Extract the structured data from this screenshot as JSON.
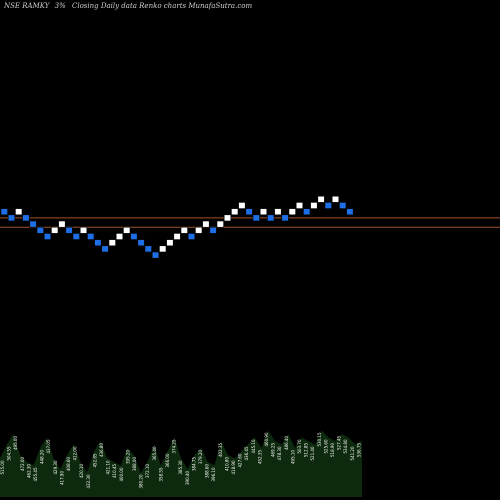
{
  "header": {
    "symbol": "NSE RAMKY",
    "suffix": "3%",
    "caption": "Closing Daily data  Renko  charts MunafaSutra.com"
  },
  "colors": {
    "background": "#000000",
    "up_brick": "#ffffff",
    "down_brick": "#1e6fe6",
    "level_line": "#a0522d",
    "volume_fill": "#0e2a0e"
  },
  "chart_data": {
    "type": "renko",
    "title": "NSE RAMKY 3% Closing Daily data Renko charts",
    "brick_size_pct": 3,
    "bricks": [
      {
        "d": "down",
        "lvl": 14
      },
      {
        "d": "down",
        "lvl": 13
      },
      {
        "d": "up",
        "lvl": 14
      },
      {
        "d": "down",
        "lvl": 13
      },
      {
        "d": "down",
        "lvl": 12
      },
      {
        "d": "down",
        "lvl": 11
      },
      {
        "d": "down",
        "lvl": 10
      },
      {
        "d": "up",
        "lvl": 11
      },
      {
        "d": "up",
        "lvl": 12
      },
      {
        "d": "down",
        "lvl": 11
      },
      {
        "d": "down",
        "lvl": 10
      },
      {
        "d": "up",
        "lvl": 11
      },
      {
        "d": "down",
        "lvl": 10
      },
      {
        "d": "down",
        "lvl": 9
      },
      {
        "d": "down",
        "lvl": 8
      },
      {
        "d": "up",
        "lvl": 9
      },
      {
        "d": "up",
        "lvl": 10
      },
      {
        "d": "up",
        "lvl": 11
      },
      {
        "d": "down",
        "lvl": 10
      },
      {
        "d": "down",
        "lvl": 9
      },
      {
        "d": "down",
        "lvl": 8
      },
      {
        "d": "down",
        "lvl": 7
      },
      {
        "d": "up",
        "lvl": 8
      },
      {
        "d": "up",
        "lvl": 9
      },
      {
        "d": "up",
        "lvl": 10
      },
      {
        "d": "up",
        "lvl": 11
      },
      {
        "d": "down",
        "lvl": 10
      },
      {
        "d": "up",
        "lvl": 11
      },
      {
        "d": "up",
        "lvl": 12
      },
      {
        "d": "down",
        "lvl": 11
      },
      {
        "d": "up",
        "lvl": 12
      },
      {
        "d": "up",
        "lvl": 13
      },
      {
        "d": "up",
        "lvl": 14
      },
      {
        "d": "up",
        "lvl": 15
      },
      {
        "d": "down",
        "lvl": 14
      },
      {
        "d": "down",
        "lvl": 13
      },
      {
        "d": "up",
        "lvl": 14
      },
      {
        "d": "down",
        "lvl": 13
      },
      {
        "d": "up",
        "lvl": 14
      },
      {
        "d": "down",
        "lvl": 13
      },
      {
        "d": "up",
        "lvl": 14
      },
      {
        "d": "up",
        "lvl": 15
      },
      {
        "d": "down",
        "lvl": 14
      },
      {
        "d": "up",
        "lvl": 15
      },
      {
        "d": "up",
        "lvl": 16
      },
      {
        "d": "down",
        "lvl": 15
      },
      {
        "d": "up",
        "lvl": 16
      },
      {
        "d": "down",
        "lvl": 15
      },
      {
        "d": "down",
        "lvl": 14
      }
    ],
    "horizontal_levels": [
      13,
      11.5
    ],
    "volume_labels": [
      "515.00",
      "504.55",
      "495.00",
      "472.00",
      "462.30",
      "455.45",
      "448.20",
      "437.05",
      "429.30",
      "417.90",
      "408.60",
      "412.00",
      "420.10",
      "432.30",
      "452.85",
      "436.80",
      "421.10",
      "410.45",
      "400.00",
      "395.20",
      "388.00",
      "380.20",
      "372.10",
      "365.40",
      "358.55",
      "366.00",
      "374.25",
      "385.30",
      "390.40",
      "384.75",
      "379.20",
      "388.60",
      "396.10",
      "402.35",
      "410.80",
      "418.90",
      "427.60",
      "436.45",
      "445.10",
      "452.35",
      "460.90",
      "469.25",
      "478.30",
      "486.40",
      "495.10",
      "503.70",
      "512.85",
      "521.40",
      "530.15",
      "525.60",
      "518.90",
      "527.45",
      "534.80",
      "541.20",
      "536.75"
    ],
    "volume_heights": [
      0.55,
      0.75,
      0.9,
      0.6,
      0.5,
      0.45,
      0.7,
      0.85,
      0.55,
      0.4,
      0.6,
      0.75,
      0.5,
      0.35,
      0.65,
      0.8,
      0.55,
      0.5,
      0.45,
      0.7,
      0.6,
      0.35,
      0.5,
      0.75,
      0.45,
      0.65,
      0.85,
      0.55,
      0.4,
      0.6,
      0.7,
      0.5,
      0.45,
      0.8,
      0.6,
      0.55,
      0.65,
      0.75,
      0.85,
      0.7,
      0.95,
      0.8,
      0.75,
      0.9,
      0.7,
      0.85,
      0.8,
      0.75,
      0.95,
      0.85,
      0.8,
      0.9,
      0.85,
      0.75,
      0.8
    ]
  }
}
